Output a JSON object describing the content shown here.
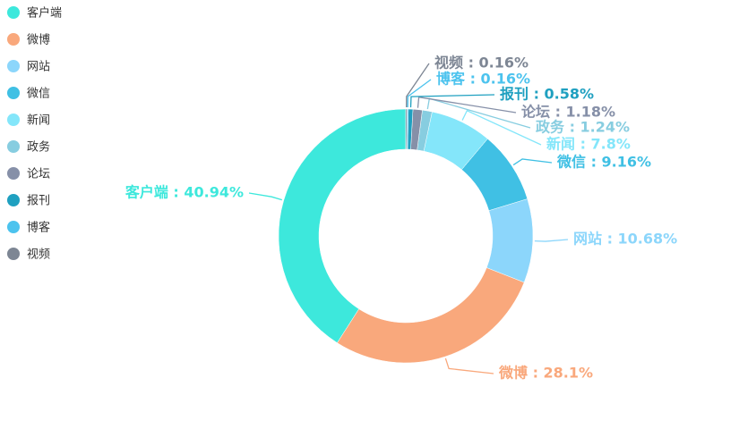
{
  "chart_data": {
    "type": "donut",
    "categories": [
      "客户端",
      "微博",
      "网站",
      "微信",
      "新闻",
      "政务",
      "论坛",
      "报刊",
      "博客",
      "视频"
    ],
    "values": [
      40.94,
      28.1,
      10.68,
      9.16,
      7.8,
      1.24,
      1.18,
      0.58,
      0.16,
      0.16
    ],
    "value_labels": [
      "客户端 : 40.94%",
      "微博 : 28.1%",
      "网站 : 10.68%",
      "微信 : 9.16%",
      "新闻 : 7.8%",
      "政务 : 1.24%",
      "论坛 : 1.18%",
      "报刊 : 0.58%",
      "博客 : 0.16%",
      "视频 : 0.16%"
    ],
    "colors": [
      "#3de8dc",
      "#f9a87c",
      "#8cd6fb",
      "#40c0e4",
      "#84e6fa",
      "#87cde0",
      "#8690a8",
      "#1fa0c0",
      "#4cc3ee",
      "#7d8694"
    ],
    "legend": "top-left"
  }
}
